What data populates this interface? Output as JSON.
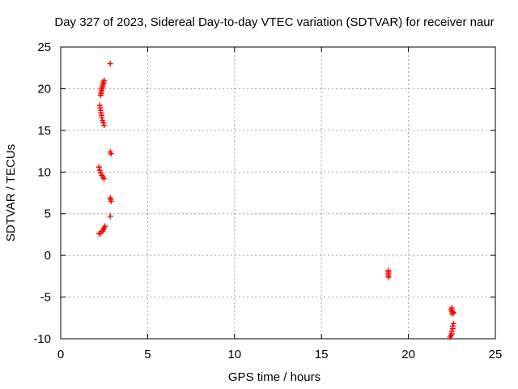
{
  "chart_data": {
    "type": "scatter",
    "title": "Day 327 of 2023, Sidereal Day-to-day VTEC variation (SDTVAR) for receiver naur",
    "xlabel": "GPS time / hours",
    "ylabel": "SDTVAR / TECUs",
    "xlim": [
      0,
      25
    ],
    "ylim": [
      -10,
      25
    ],
    "xticks": [
      0,
      5,
      10,
      15,
      20,
      25
    ],
    "yticks": [
      -10,
      -5,
      0,
      5,
      10,
      15,
      20,
      25
    ],
    "grid": true,
    "marker": "plus",
    "color": "#ff0000",
    "series": [
      {
        "points": [
          [
            2.85,
            23.0
          ],
          [
            2.5,
            21.0
          ],
          [
            2.47,
            20.8
          ],
          [
            2.45,
            20.6
          ],
          [
            2.42,
            20.4
          ],
          [
            2.4,
            20.2
          ],
          [
            2.37,
            20.0
          ],
          [
            2.35,
            19.8
          ],
          [
            2.33,
            19.6
          ],
          [
            2.32,
            19.4
          ],
          [
            2.3,
            19.2
          ],
          [
            2.25,
            18.0
          ],
          [
            2.27,
            17.7
          ],
          [
            2.3,
            17.4
          ],
          [
            2.32,
            17.1
          ],
          [
            2.35,
            16.8
          ],
          [
            2.37,
            16.5
          ],
          [
            2.4,
            16.2
          ],
          [
            2.45,
            15.9
          ],
          [
            2.5,
            15.6
          ],
          [
            2.85,
            12.4
          ],
          [
            2.9,
            12.2
          ],
          [
            2.2,
            10.6
          ],
          [
            2.25,
            10.2
          ],
          [
            2.3,
            9.9
          ],
          [
            2.37,
            9.6
          ],
          [
            2.42,
            9.4
          ],
          [
            2.5,
            9.2
          ],
          [
            2.85,
            6.9
          ],
          [
            2.88,
            6.7
          ],
          [
            2.9,
            6.5
          ],
          [
            2.85,
            4.7
          ],
          [
            2.55,
            3.5
          ],
          [
            2.5,
            3.3
          ],
          [
            2.45,
            3.1
          ],
          [
            2.4,
            2.9
          ],
          [
            2.3,
            2.7
          ],
          [
            2.2,
            2.6
          ],
          [
            18.85,
            -1.8
          ],
          [
            18.85,
            -2.0
          ],
          [
            18.85,
            -2.2
          ],
          [
            18.85,
            -2.4
          ],
          [
            18.85,
            -2.6
          ],
          [
            22.5,
            -6.3
          ],
          [
            22.45,
            -6.5
          ],
          [
            22.5,
            -6.7
          ],
          [
            22.55,
            -6.8
          ],
          [
            22.6,
            -6.9
          ],
          [
            22.5,
            -7.0
          ],
          [
            22.6,
            -8.2
          ],
          [
            22.55,
            -8.5
          ],
          [
            22.55,
            -8.8
          ],
          [
            22.5,
            -9.1
          ],
          [
            22.5,
            -9.4
          ],
          [
            22.45,
            -9.6
          ],
          [
            22.4,
            -9.8
          ]
        ]
      }
    ]
  }
}
